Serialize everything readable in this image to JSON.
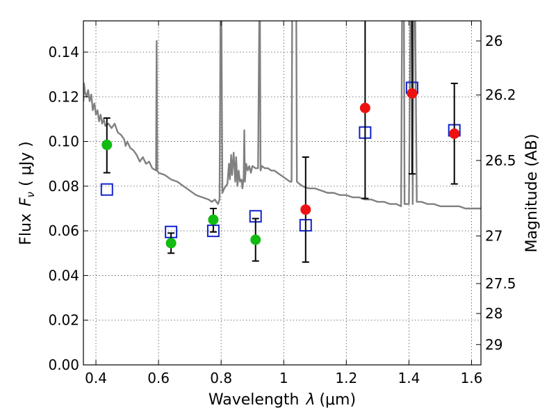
{
  "chart_data": {
    "type": "scatter",
    "xlabel_prefix": "Wavelength",
    "xlabel_symbol": "λ",
    "xlabel_unit": "(μm)",
    "ylabel_left_prefix": "Flux",
    "ylabel_left_symbol": "F",
    "ylabel_left_sub": "ν",
    "ylabel_left_unit": "( μJy )",
    "ylabel_right": "Magnitude (AB)",
    "xlim": [
      0.36,
      1.63
    ],
    "ylim": [
      0.0,
      0.154
    ],
    "xticks": [
      0.4,
      0.6,
      0.8,
      1.0,
      1.2,
      1.4,
      1.6
    ],
    "xtick_labels": [
      "0.4",
      "0.6",
      "0.8",
      "1",
      "1.2",
      "1.4",
      "1.6"
    ],
    "yticks": [
      0.0,
      0.02,
      0.04,
      0.06,
      0.08,
      0.1,
      0.12,
      0.14
    ],
    "ytick_labels": [
      "0.00",
      "0.02",
      "0.04",
      "0.06",
      "0.08",
      "0.10",
      "0.12",
      "0.14"
    ],
    "right_ticks": [
      {
        "flux": 0.145,
        "label": "26"
      },
      {
        "flux": 0.1208,
        "label": "26.2"
      },
      {
        "flux": 0.0915,
        "label": "26.5"
      },
      {
        "flux": 0.0577,
        "label": "27"
      },
      {
        "flux": 0.0364,
        "label": "27.5"
      },
      {
        "flux": 0.023,
        "label": "28"
      },
      {
        "flux": 0.0091,
        "label": "29"
      }
    ],
    "grid": true,
    "colors": {
      "model": "#808080",
      "green": "#11bb11",
      "red": "#ee1111",
      "blue": "#1122cc",
      "errorbar": "#000000"
    },
    "model_spectrum": [
      [
        0.36,
        0.118
      ],
      [
        0.362,
        0.126
      ],
      [
        0.365,
        0.122
      ],
      [
        0.37,
        0.12
      ],
      [
        0.375,
        0.123
      ],
      [
        0.38,
        0.118
      ],
      [
        0.385,
        0.121
      ],
      [
        0.39,
        0.114
      ],
      [
        0.395,
        0.117
      ],
      [
        0.4,
        0.112
      ],
      [
        0.405,
        0.114
      ],
      [
        0.41,
        0.109
      ],
      [
        0.415,
        0.112
      ],
      [
        0.42,
        0.108
      ],
      [
        0.425,
        0.11
      ],
      [
        0.43,
        0.107
      ],
      [
        0.44,
        0.108
      ],
      [
        0.45,
        0.106
      ],
      [
        0.46,
        0.108
      ],
      [
        0.47,
        0.104
      ],
      [
        0.48,
        0.103
      ],
      [
        0.49,
        0.101
      ],
      [
        0.495,
        0.098
      ],
      [
        0.5,
        0.1
      ],
      [
        0.51,
        0.097
      ],
      [
        0.52,
        0.096
      ],
      [
        0.53,
        0.094
      ],
      [
        0.54,
        0.091
      ],
      [
        0.55,
        0.093
      ],
      [
        0.56,
        0.09
      ],
      [
        0.57,
        0.091
      ],
      [
        0.58,
        0.088
      ],
      [
        0.592,
        0.087
      ],
      [
        0.594,
        0.145
      ],
      [
        0.596,
        0.087
      ],
      [
        0.6,
        0.086
      ],
      [
        0.62,
        0.085
      ],
      [
        0.64,
        0.083
      ],
      [
        0.66,
        0.082
      ],
      [
        0.68,
        0.08
      ],
      [
        0.7,
        0.078
      ],
      [
        0.72,
        0.076
      ],
      [
        0.74,
        0.075
      ],
      [
        0.76,
        0.074
      ],
      [
        0.77,
        0.073
      ],
      [
        0.78,
        0.074
      ],
      [
        0.785,
        0.073
      ],
      [
        0.79,
        0.072
      ],
      [
        0.795,
        0.074
      ],
      [
        0.798,
        0.156
      ],
      [
        0.801,
        0.156
      ],
      [
        0.804,
        0.077
      ],
      [
        0.81,
        0.079
      ],
      [
        0.82,
        0.081
      ],
      [
        0.825,
        0.09
      ],
      [
        0.828,
        0.083
      ],
      [
        0.832,
        0.094
      ],
      [
        0.835,
        0.085
      ],
      [
        0.84,
        0.095
      ],
      [
        0.845,
        0.082
      ],
      [
        0.848,
        0.093
      ],
      [
        0.852,
        0.08
      ],
      [
        0.856,
        0.087
      ],
      [
        0.86,
        0.082
      ],
      [
        0.865,
        0.083
      ],
      [
        0.868,
        0.079
      ],
      [
        0.872,
        0.084
      ],
      [
        0.874,
        0.105
      ],
      [
        0.876,
        0.082
      ],
      [
        0.88,
        0.09
      ],
      [
        0.885,
        0.087
      ],
      [
        0.89,
        0.089
      ],
      [
        0.895,
        0.086
      ],
      [
        0.9,
        0.089
      ],
      [
        0.91,
        0.088
      ],
      [
        0.918,
        0.088
      ],
      [
        0.922,
        0.156
      ],
      [
        0.924,
        0.156
      ],
      [
        0.926,
        0.087
      ],
      [
        0.93,
        0.089
      ],
      [
        0.94,
        0.088
      ],
      [
        0.95,
        0.088
      ],
      [
        0.96,
        0.087
      ],
      [
        0.97,
        0.087
      ],
      [
        0.98,
        0.086
      ],
      [
        0.99,
        0.085
      ],
      [
        1.0,
        0.084
      ],
      [
        1.01,
        0.083
      ],
      [
        1.02,
        0.082
      ],
      [
        1.025,
        0.082
      ],
      [
        1.027,
        0.156
      ],
      [
        1.04,
        0.156
      ],
      [
        1.042,
        0.082
      ],
      [
        1.05,
        0.081
      ],
      [
        1.06,
        0.08
      ],
      [
        1.08,
        0.079
      ],
      [
        1.1,
        0.079
      ],
      [
        1.12,
        0.078
      ],
      [
        1.14,
        0.077
      ],
      [
        1.16,
        0.077
      ],
      [
        1.18,
        0.076
      ],
      [
        1.2,
        0.076
      ],
      [
        1.22,
        0.075
      ],
      [
        1.24,
        0.075
      ],
      [
        1.26,
        0.074
      ],
      [
        1.28,
        0.074
      ],
      [
        1.3,
        0.073
      ],
      [
        1.32,
        0.073
      ],
      [
        1.34,
        0.072
      ],
      [
        1.36,
        0.072
      ],
      [
        1.375,
        0.071
      ],
      [
        1.378,
        0.156
      ],
      [
        1.384,
        0.156
      ],
      [
        1.386,
        0.072
      ],
      [
        1.4,
        0.072
      ],
      [
        1.405,
        0.156
      ],
      [
        1.41,
        0.156
      ],
      [
        1.412,
        0.072
      ],
      [
        1.415,
        0.156
      ],
      [
        1.42,
        0.156
      ],
      [
        1.425,
        0.073
      ],
      [
        1.44,
        0.073
      ],
      [
        1.46,
        0.072
      ],
      [
        1.48,
        0.072
      ],
      [
        1.5,
        0.071
      ],
      [
        1.52,
        0.071
      ],
      [
        1.54,
        0.071
      ],
      [
        1.56,
        0.071
      ],
      [
        1.58,
        0.07
      ],
      [
        1.6,
        0.07
      ],
      [
        1.63,
        0.07
      ]
    ],
    "blue_squares": [
      {
        "x": 0.435,
        "y": 0.0785
      },
      {
        "x": 0.64,
        "y": 0.0595
      },
      {
        "x": 0.775,
        "y": 0.06
      },
      {
        "x": 0.91,
        "y": 0.0665
      },
      {
        "x": 1.07,
        "y": 0.0625
      },
      {
        "x": 1.26,
        "y": 0.104
      },
      {
        "x": 1.41,
        "y": 0.124
      },
      {
        "x": 1.545,
        "y": 0.105
      }
    ],
    "green_points": [
      {
        "x": 0.435,
        "y": 0.0985,
        "err_lo": 0.086,
        "err_hi": 0.1105
      },
      {
        "x": 0.64,
        "y": 0.0545,
        "err_lo": 0.05,
        "err_hi": 0.059
      },
      {
        "x": 0.775,
        "y": 0.065,
        "err_lo": 0.0595,
        "err_hi": 0.07
      },
      {
        "x": 0.91,
        "y": 0.056,
        "err_lo": 0.0465,
        "err_hi": 0.0655
      }
    ],
    "red_points": [
      {
        "x": 1.07,
        "y": 0.0695,
        "err_lo": 0.046,
        "err_hi": 0.093
      },
      {
        "x": 1.26,
        "y": 0.115,
        "err_lo": 0.0745,
        "err_hi": 0.156
      },
      {
        "x": 1.41,
        "y": 0.1215,
        "err_lo": 0.0855,
        "err_hi": 0.156
      },
      {
        "x": 1.545,
        "y": 0.1035,
        "err_lo": 0.081,
        "err_hi": 0.126
      }
    ]
  }
}
